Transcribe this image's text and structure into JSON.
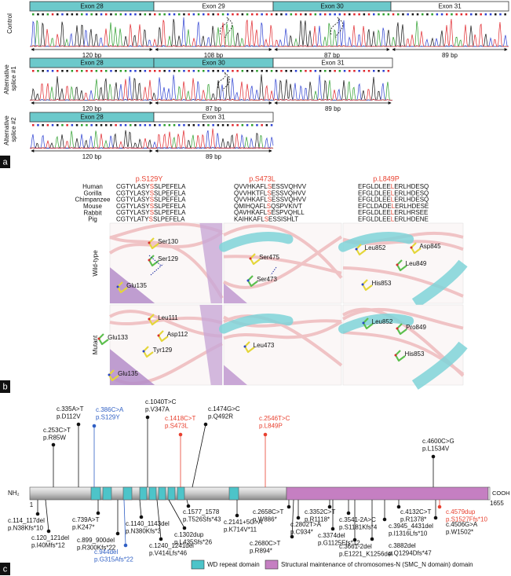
{
  "panel_labels": [
    "a",
    "b",
    "c"
  ],
  "splicing": {
    "rows": [
      {
        "label": "Control",
        "exons": [
          {
            "name": "Exon 28",
            "size": "120 bp",
            "color": "#6cc9cb"
          },
          {
            "name": "Exon 29",
            "size": "108 bp",
            "color": "#ffffff"
          },
          {
            "name": "Exon 30",
            "size": "87 bp",
            "color": "#6cc9cb"
          },
          {
            "name": "Exon 31",
            "size": "89 bp",
            "color": "#ffffff"
          }
        ]
      },
      {
        "label": "Alternative splice #1",
        "exons": [
          {
            "name": "Exon 28",
            "size": "120 bp",
            "color": "#6cc9cb"
          },
          {
            "name": "Exon 30",
            "size": "87 bp",
            "color": "#6cc9cb"
          },
          {
            "name": "Exon 31",
            "size": "89 bp",
            "color": "#ffffff"
          }
        ]
      },
      {
        "label": "Alternative splice #2",
        "exons": [
          {
            "name": "Exon 28",
            "size": "120 bp",
            "color": "#6cc9cb"
          },
          {
            "name": "Exon 31",
            "size": "89 bp",
            "color": "#ffffff"
          }
        ]
      }
    ]
  },
  "alignment": {
    "species": [
      "Human",
      "Gorilla",
      "Chimpanzee",
      "Mouse",
      "Rabbit",
      "Pig"
    ],
    "columns": [
      {
        "mutation": "p.S129Y",
        "sequences": [
          "CGTYLASYSSLPEFELA",
          "CGTYLASYSSLPEFELA",
          "CGTYLASYSSLPEFELA",
          "CGTYLASYSSLPEFELA",
          "CGTYLASYSSLPEFELA",
          "CGTYLATYSSLPEFELA"
        ]
      },
      {
        "mutation": "p.S473L",
        "sequences": [
          "QVVHKAFLSESSVQHVV",
          "QVVHKTFLSESSVQHVV",
          "QVVHKAFLSESSVQHVV",
          "QMIHQAFLSQSPVKIVT",
          "QAVHKAFLSESPVQHLL",
          "KAIHKAFLSESSISHLT"
        ]
      },
      {
        "mutation": "p.L849P",
        "sequences": [
          "EFGLDLEELERLHDESQ",
          "EFGLDLEELERLHDESQ",
          "EFGLDLEELERLHDESQ",
          "EFCLDADELERLHDESE",
          "EFGLDLEELERLHRSEE",
          "EFGLDLEELERLHDENE"
        ]
      }
    ]
  },
  "structures": {
    "rows": [
      "Wild-type",
      "Mutant"
    ],
    "wild_type": [
      [
        "Ser130",
        "Ser129",
        "Glu135"
      ],
      [
        "Ser475",
        "Ser473"
      ],
      [
        "Asp845",
        "Leu852",
        "Leu849",
        "His853"
      ]
    ],
    "mutant": [
      [
        "Leu111",
        "Glu133",
        "Asp112",
        "Tyr129",
        "Glu135"
      ],
      [
        "Leu473"
      ],
      [
        "Leu852",
        "Pro849",
        "His853"
      ]
    ]
  },
  "protein": {
    "n_term": "NH₂",
    "c_term": "COOH",
    "start": 1,
    "end": 1655,
    "mutations_above": [
      {
        "cdna": "c.253C>T",
        "protein": "p.R85W",
        "color": "#111111"
      },
      {
        "cdna": "c.335A>T",
        "protein": "p.D112V",
        "color": "#111111"
      },
      {
        "cdna": "c.386C>A",
        "protein": "p.S129Y",
        "color": "#2f5fc4"
      },
      {
        "cdna": "c.1040T>C",
        "protein": "p.V347A",
        "color": "#111111"
      },
      {
        "cdna": "c.1418C>T",
        "protein": "p.S473L",
        "color": "#e8402f"
      },
      {
        "cdna": "c.1474G>C",
        "protein": "p.Q492R",
        "color": "#111111"
      },
      {
        "cdna": "c.2546T>C",
        "protein": "p.L849P",
        "color": "#e8402f"
      },
      {
        "cdna": "c.4600C>G",
        "protein": "p.L1534V",
        "color": "#111111"
      }
    ],
    "mutations_below": [
      {
        "cdna": "c.114_117del",
        "protein": "p.N38Kfs*10",
        "color": "#111111"
      },
      {
        "cdna": "c.120_121del",
        "protein": "p.I40Mfs*12",
        "color": "#111111"
      },
      {
        "cdna": "c.739A>T",
        "protein": "p.K247*",
        "color": "#111111"
      },
      {
        "cdna": "c.899_900del",
        "protein": "p.R300Kfs*22",
        "color": "#111111"
      },
      {
        "cdna": "c.944del",
        "protein": "p.G315Afs*22",
        "color": "#2f5fc4"
      },
      {
        "cdna": "c.1140_1143del",
        "protein": "p.N380Kfs*3",
        "color": "#111111"
      },
      {
        "cdna": "c.1240_1241del",
        "protein": "p.V414Lfs*46",
        "color": "#111111"
      },
      {
        "cdna": "c.1302dup",
        "protein": "p.L435Sfs*26",
        "color": "#111111"
      },
      {
        "cdna": "c.1577_1578",
        "protein": "p.T526Sfs*43",
        "color": "#111111"
      },
      {
        "cdna": "c.2141+5G>A",
        "protein": "p.K714V*11",
        "color": "#111111"
      },
      {
        "cdna": "c.2658C>T",
        "protein": "p.W886*",
        "color": "#111111"
      },
      {
        "cdna": "c.2680C>T",
        "protein": "p.R894*",
        "color": "#111111"
      },
      {
        "cdna": "c.2802T>A",
        "protein": "p.C934*",
        "color": "#111111"
      },
      {
        "cdna": "c.3352C>T",
        "protein": "p.R1118*",
        "color": "#111111"
      },
      {
        "cdna": "c.3374del",
        "protein": "p.G1125Efs*12",
        "color": "#111111"
      },
      {
        "cdna": "c.3541-2A>C",
        "protein": "p.S1181Kfs*4",
        "color": "#111111"
      },
      {
        "cdna": "c.3661-2del",
        "protein": "p.E1221_K1256del",
        "color": "#111111"
      },
      {
        "cdna": "c.3882del",
        "protein": "p.Q1294Dfs*47",
        "color": "#111111"
      },
      {
        "cdna": "c.3945_4431del",
        "protein": "p.I1316Lfs*10",
        "color": "#111111"
      },
      {
        "cdna": "c.4132C>T",
        "protein": "p.R1378*",
        "color": "#111111"
      },
      {
        "cdna": "c.4506G>A",
        "protein": "p.W1502*",
        "color": "#111111"
      },
      {
        "cdna": "c.4579dup",
        "protein": "p.S1527Ffs*10",
        "color": "#e8402f"
      }
    ]
  },
  "legend": [
    {
      "label": "WD repeat domain",
      "color": "#4dc4c9"
    },
    {
      "label": "Structural maintenance of chromosomes-N (SMC_N domain) domain",
      "color": "#c57fc2"
    }
  ]
}
